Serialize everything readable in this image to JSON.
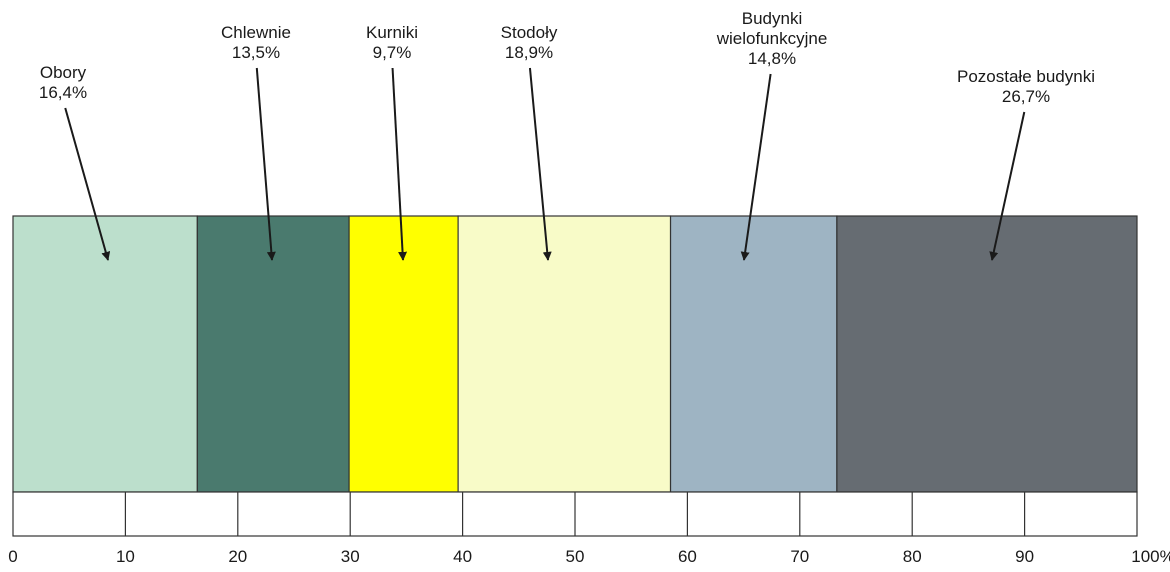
{
  "chart_data": {
    "type": "bar",
    "stacked": true,
    "orientation": "horizontal",
    "title": "",
    "xlabel": "",
    "ylabel": "",
    "xlim": [
      0,
      100
    ],
    "categories": [
      "Obory",
      "Chlewnie",
      "Kurniki",
      "Stodoły",
      "Budynki wielofunkcyjne",
      "Pozostałe budynki"
    ],
    "values": [
      16.4,
      13.5,
      9.7,
      18.9,
      14.8,
      26.7
    ],
    "value_labels": [
      "16,4%",
      "13,5%",
      "9,7%",
      "18,9%",
      "14,8%",
      "26,7%"
    ],
    "label_lines": [
      [
        "Obory",
        "16,4%"
      ],
      [
        "Chlewnie",
        "13,5%"
      ],
      [
        "Kurniki",
        "9,7%"
      ],
      [
        "Stodoły",
        "18,9%"
      ],
      [
        "Budynki",
        "wielofunkcyjne",
        "14,8%"
      ],
      [
        "Pozostałe budynki",
        "26,7%"
      ]
    ],
    "colors": [
      "#bcdfcc",
      "#4a7a6e",
      "#ffff00",
      "#f8fbc8",
      "#9eb4c3",
      "#666c72"
    ],
    "tick_labels": [
      "0",
      "10",
      "20",
      "30",
      "40",
      "50",
      "60",
      "70",
      "80",
      "90",
      "100%"
    ],
    "grid": false,
    "legend": "none"
  }
}
